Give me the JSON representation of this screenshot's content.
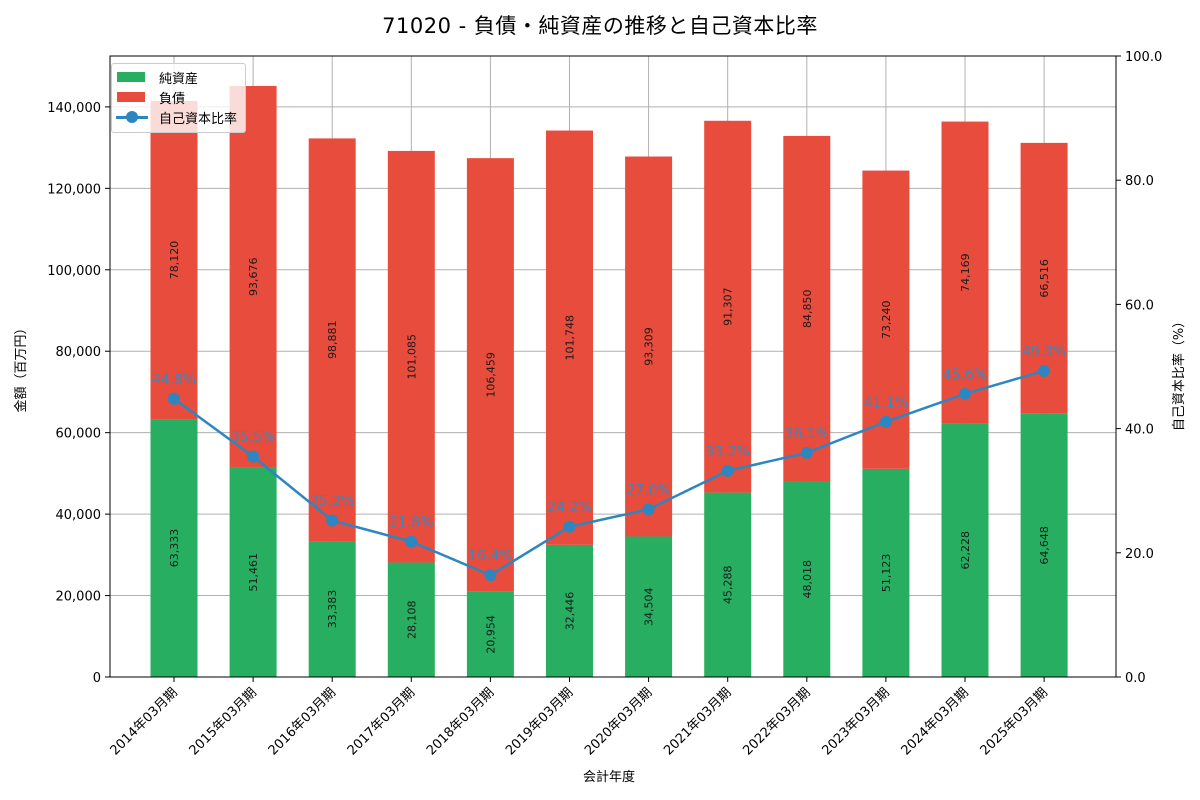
{
  "title": "71020 - 負債・純資産の推移と自己資本比率",
  "colors": {
    "net_assets": "#27ae60",
    "liabilities": "#e74c3c",
    "equity_ratio": "#2e86c1",
    "pct_label": "#3a87c0",
    "grid": "#b0b0b0"
  },
  "legend": {
    "items": [
      {
        "label": "純資産",
        "type": "bar"
      },
      {
        "label": "負債",
        "type": "bar"
      },
      {
        "label": "自己資本比率",
        "type": "line"
      }
    ]
  },
  "axes": {
    "x_title": "会計年度",
    "y_left_title": "金額（百万円）",
    "y_right_title": "自己資本比率（%）",
    "y_left_ticks": [
      "0",
      "20,000",
      "40,000",
      "60,000",
      "80,000",
      "100,000",
      "120,000",
      "140,000"
    ],
    "y_right_ticks": [
      "0.0",
      "20.0",
      "40.0",
      "60.0",
      "80.0",
      "100.0"
    ]
  },
  "chart_data": {
    "type": "bar",
    "stacked": true,
    "title": "71020 - 負債・純資産の推移と自己資本比率",
    "xlabel": "会計年度",
    "ylabel": "金額（百万円）",
    "ylabel_right": "自己資本比率（%）",
    "ylim": [
      0,
      152500
    ],
    "ylim_right": [
      0,
      100
    ],
    "grid": true,
    "legend_position": "upper left",
    "categories": [
      "2014年03月期",
      "2015年03月期",
      "2016年03月期",
      "2017年03月期",
      "2018年03月期",
      "2019年03月期",
      "2020年03月期",
      "2021年03月期",
      "2022年03月期",
      "2023年03月期",
      "2024年03月期",
      "2025年03月期"
    ],
    "series": [
      {
        "name": "純資産",
        "type": "bar",
        "axis": "left",
        "color": "#27ae60",
        "values": [
          63333,
          51461,
          33383,
          28108,
          20954,
          32446,
          34504,
          45288,
          48018,
          51123,
          62228,
          64648
        ],
        "labels": [
          "63,333",
          "51,461",
          "33,383",
          "28,108",
          "20,954",
          "32,446",
          "34,504",
          "45,288",
          "48,018",
          "51,123",
          "62,228",
          "64,648"
        ]
      },
      {
        "name": "負債",
        "type": "bar",
        "axis": "left",
        "color": "#e74c3c",
        "values": [
          78120,
          93676,
          98881,
          101085,
          106459,
          101748,
          93309,
          91307,
          84850,
          73240,
          74169,
          66516
        ],
        "labels": [
          "78,120",
          "93,676",
          "98,881",
          "101,085",
          "106,459",
          "101,748",
          "93,309",
          "91,307",
          "84,850",
          "73,240",
          "74,169",
          "66,516"
        ]
      },
      {
        "name": "自己資本比率",
        "type": "line",
        "axis": "right",
        "color": "#2e86c1",
        "values": [
          44.8,
          35.5,
          25.2,
          21.8,
          16.4,
          24.2,
          27.0,
          33.2,
          36.1,
          41.1,
          45.6,
          49.3
        ],
        "labels": [
          "44.8%",
          "35.5%",
          "25.2%",
          "21.8%",
          "16.4%",
          "24.2%",
          "27.0%",
          "33.2%",
          "36.1%",
          "41.1%",
          "45.6%",
          "49.3%"
        ]
      }
    ]
  }
}
